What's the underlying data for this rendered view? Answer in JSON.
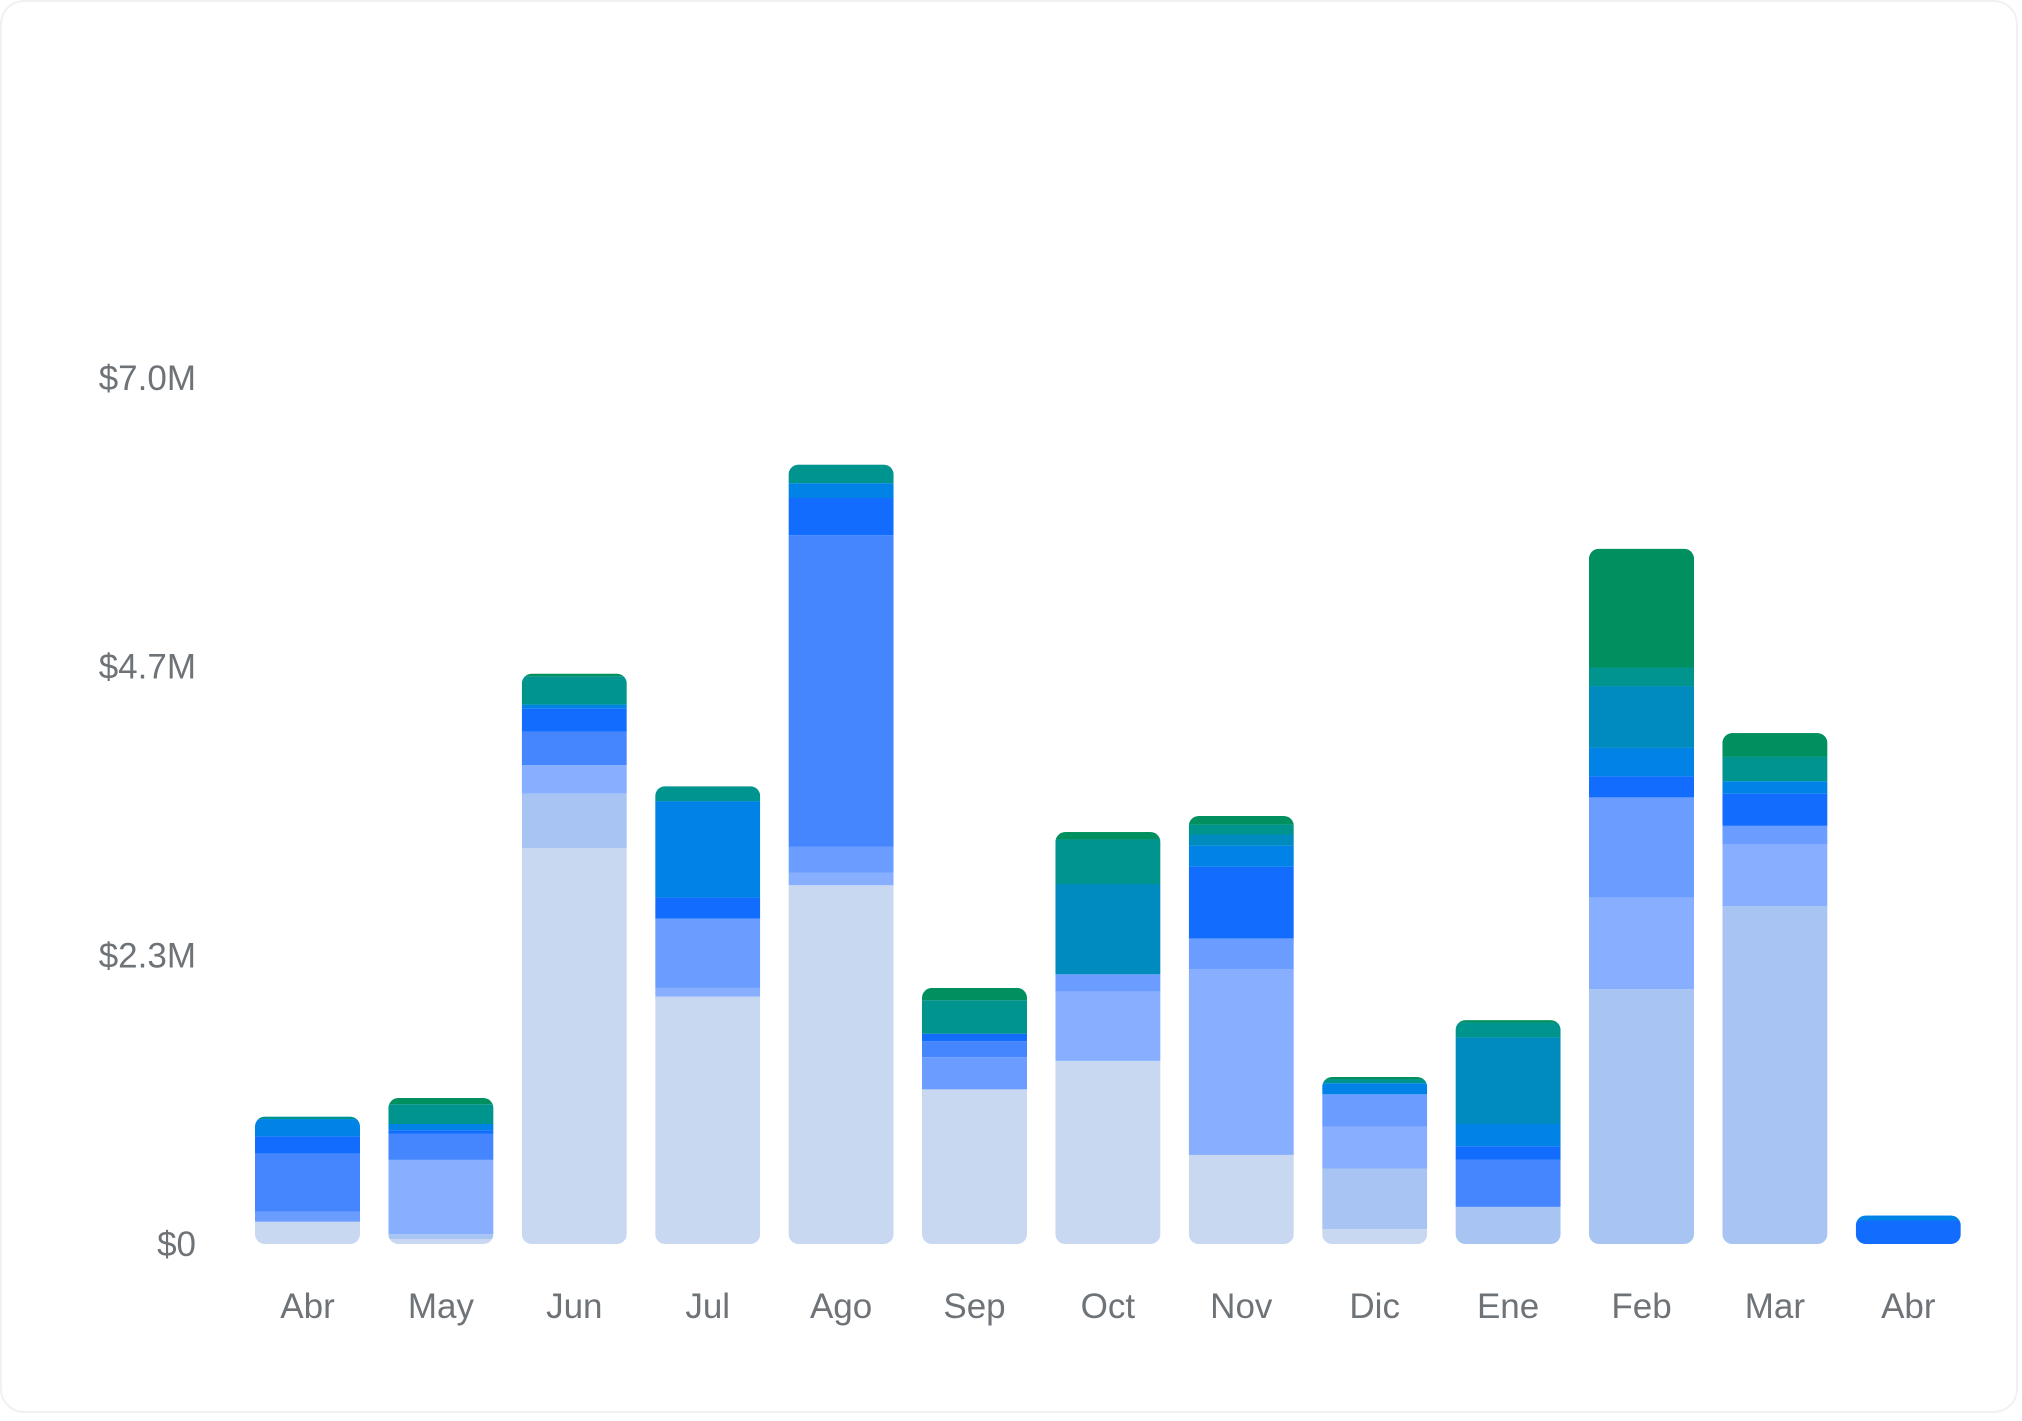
{
  "chart_data": {
    "type": "bar",
    "stacked": true,
    "title": "",
    "xlabel": "",
    "ylabel": "",
    "ylim": [
      0,
      7.0
    ],
    "y_unit": "M USD",
    "y_ticks": [
      0,
      2.33,
      4.67,
      7.0
    ],
    "y_tick_labels": [
      "$0",
      "$2.3M",
      "$4.7M",
      "$7.0M"
    ],
    "grid": false,
    "legend": "none",
    "categories": [
      "Abr",
      "May",
      "Jun",
      "Jul",
      "Ago",
      "Sep",
      "Oct",
      "Nov",
      "Dic",
      "Ene",
      "Feb",
      "Mar",
      "Abr"
    ],
    "series": [
      {
        "color": "#c9d8f1",
        "values": [
          0.18,
          0.04,
          3.2,
          2.0,
          2.9,
          1.25,
          1.48,
          0.72,
          0.12,
          0.0,
          0.0,
          0.0,
          0.0
        ]
      },
      {
        "color": "#a8c4f3",
        "values": [
          0.0,
          0.04,
          0.44,
          0.0,
          0.0,
          0.0,
          0.0,
          0.0,
          0.49,
          0.3,
          2.06,
          2.73,
          0.0
        ]
      },
      {
        "color": "#88afff",
        "values": [
          0.0,
          0.6,
          0.23,
          0.07,
          0.1,
          0.0,
          0.56,
          1.5,
          0.34,
          0.0,
          0.74,
          0.5,
          0.0
        ]
      },
      {
        "color": "#6a9dff",
        "values": [
          0.08,
          0.0,
          0.0,
          0.56,
          0.21,
          0.26,
          0.14,
          0.25,
          0.26,
          0.0,
          0.81,
          0.15,
          0.0
        ]
      },
      {
        "color": "#4586ff",
        "values": [
          0.47,
          0.21,
          0.27,
          0.0,
          2.52,
          0.13,
          0.0,
          0.0,
          0.0,
          0.38,
          0.0,
          0.0,
          0.0
        ]
      },
      {
        "color": "#126dff",
        "values": [
          0.14,
          0.03,
          0.19,
          0.17,
          0.3,
          0.06,
          0.0,
          0.58,
          0.0,
          0.11,
          0.17,
          0.26,
          0.19
        ]
      },
      {
        "color": "#0082e6",
        "values": [
          0.14,
          0.05,
          0.03,
          0.78,
          0.12,
          0.0,
          0.0,
          0.17,
          0.09,
          0.18,
          0.23,
          0.1,
          0.04
        ]
      },
      {
        "color": "#008bbf",
        "values": [
          0.0,
          0.0,
          0.0,
          0.0,
          0.0,
          0.0,
          0.73,
          0.09,
          0.0,
          0.7,
          0.5,
          0.0,
          0.0
        ]
      },
      {
        "color": "#00948f",
        "values": [
          0.02,
          0.16,
          0.23,
          0.12,
          0.15,
          0.27,
          0.36,
          0.08,
          0.03,
          0.12,
          0.15,
          0.2,
          0.0
        ]
      },
      {
        "color": "#008f5e",
        "values": [
          0.0,
          0.05,
          0.02,
          0.0,
          0.0,
          0.1,
          0.06,
          0.07,
          0.02,
          0.02,
          0.96,
          0.19,
          0.0
        ]
      }
    ]
  }
}
